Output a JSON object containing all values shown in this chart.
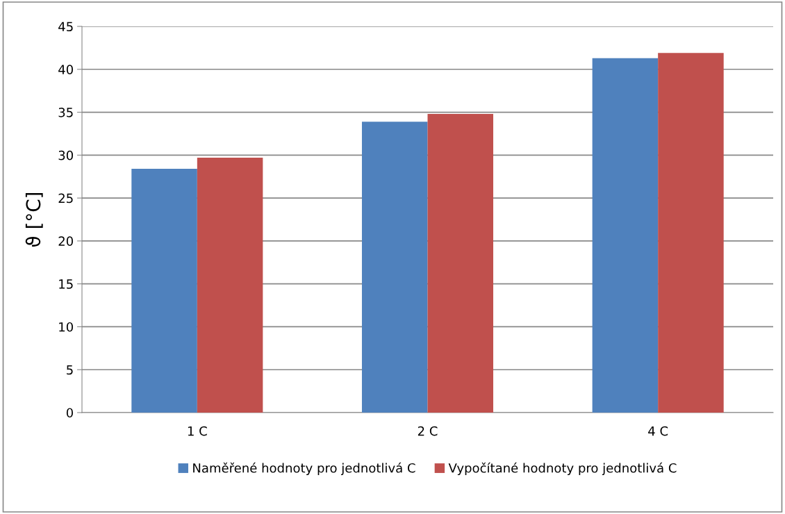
{
  "chart_data": {
    "type": "bar",
    "ylabel": "ϑ [°C]",
    "categories": [
      "1 C",
      "2 C",
      "4 C"
    ],
    "series": [
      {
        "name": "Naměřené hodnoty pro jednotlivá C",
        "color": "#4f81bd",
        "values": [
          28.4,
          33.9,
          41.3
        ]
      },
      {
        "name": "Vypočítané hodnoty pro jednotlivá C",
        "color": "#c0504d",
        "values": [
          29.7,
          34.8,
          41.9
        ]
      }
    ],
    "ylim": [
      0,
      45
    ],
    "yticks": [
      0,
      5,
      10,
      15,
      20,
      25,
      30,
      35,
      40,
      45
    ],
    "grid": "y",
    "legend": "bottom"
  }
}
